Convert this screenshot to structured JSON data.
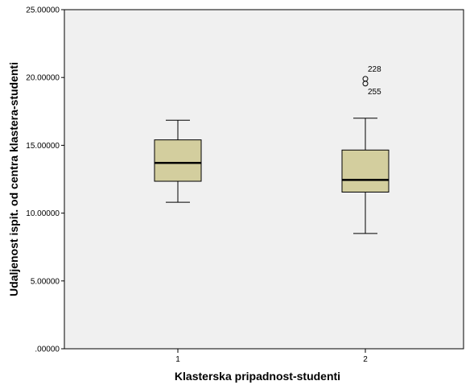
{
  "chart_data": {
    "type": "boxplot",
    "xlabel": "Klasterska pripadnost-studenti",
    "ylabel": "Udaljenost ispit. od centra klastera-studenti",
    "ylim": [
      0,
      25
    ],
    "yticks": [
      0,
      5,
      10,
      15,
      20,
      25
    ],
    "ytick_labels": [
      ".00000",
      "5.00000",
      "10.00000",
      "15.00000",
      "20.00000",
      "25.00000"
    ],
    "categories": [
      "1",
      "2"
    ],
    "boxes": [
      {
        "category": "1",
        "whisker_low": 10.8,
        "q1": 12.35,
        "median": 13.7,
        "q3": 15.4,
        "whisker_high": 16.85,
        "outliers": []
      },
      {
        "category": "2",
        "whisker_low": 8.5,
        "q1": 11.55,
        "median": 12.45,
        "q3": 14.65,
        "whisker_high": 17.0,
        "outliers": [
          {
            "value": 19.9,
            "label": "228"
          },
          {
            "value": 19.55,
            "label": "255"
          }
        ]
      }
    ],
    "grid": false,
    "legend": "none",
    "colors": {
      "plot_background": "#f0f0f0",
      "box_fill": "#d3ce9e",
      "line": "#000000"
    }
  }
}
